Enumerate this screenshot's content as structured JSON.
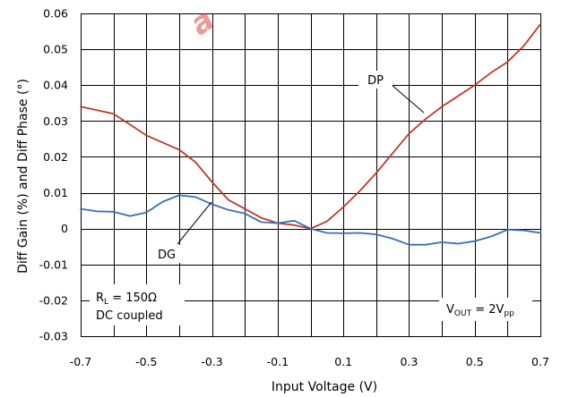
{
  "chart_data": {
    "type": "line",
    "xlabel": "Input Voltage (V)",
    "ylabel": "Diff Gain (%) and Diff Phase (°)",
    "xlim": [
      -0.7,
      0.7
    ],
    "ylim": [
      -0.03,
      0.06
    ],
    "x_ticks": [
      "-0.7",
      "-0.5",
      "-0.3",
      "-0.1",
      "0.1",
      "0.3",
      "0.5",
      "0.7"
    ],
    "x_tick_values": [
      -0.7,
      -0.5,
      -0.3,
      -0.1,
      0.1,
      0.3,
      0.5,
      0.7
    ],
    "y_ticks": [
      "0.06",
      "0.05",
      "0.04",
      "0.03",
      "0.02",
      "0.01",
      "0",
      "-0.01",
      "-0.02",
      "-0.03"
    ],
    "y_tick_values": [
      0.06,
      0.05,
      0.04,
      0.03,
      0.02,
      0.01,
      0,
      -0.01,
      -0.02,
      -0.03
    ],
    "x_grid_values": [
      -0.7,
      -0.6,
      -0.5,
      -0.4,
      -0.3,
      -0.2,
      -0.1,
      0,
      0.1,
      0.2,
      0.3,
      0.4,
      0.5,
      0.6,
      0.7
    ],
    "grid": true,
    "series": [
      {
        "name": "DP",
        "color": "#c0392b",
        "x": [
          -0.7,
          -0.65,
          -0.6,
          -0.55,
          -0.5,
          -0.45,
          -0.4,
          -0.35,
          -0.3,
          -0.25,
          -0.2,
          -0.15,
          -0.1,
          -0.05,
          0,
          0.05,
          0.1,
          0.15,
          0.2,
          0.25,
          0.3,
          0.35,
          0.4,
          0.45,
          0.5,
          0.55,
          0.6,
          0.65,
          0.7
        ],
        "y": [
          0.034,
          0.033,
          0.032,
          0.029,
          0.026,
          0.024,
          0.022,
          0.0185,
          0.013,
          0.008,
          0.0055,
          0.003,
          0.0015,
          0.001,
          0.0,
          0.002,
          0.006,
          0.0105,
          0.0155,
          0.021,
          0.0265,
          0.0305,
          0.034,
          0.037,
          0.04,
          0.0435,
          0.0465,
          0.051,
          0.057
        ]
      },
      {
        "name": "DG",
        "color": "#3a6fb5",
        "x": [
          -0.7,
          -0.65,
          -0.6,
          -0.55,
          -0.5,
          -0.45,
          -0.4,
          -0.35,
          -0.3,
          -0.25,
          -0.2,
          -0.15,
          -0.1,
          -0.05,
          0,
          0.05,
          0.1,
          0.15,
          0.2,
          0.25,
          0.3,
          0.35,
          0.4,
          0.45,
          0.5,
          0.55,
          0.6,
          0.65,
          0.7
        ],
        "y": [
          0.0055,
          0.0048,
          0.0047,
          0.0035,
          0.0045,
          0.0075,
          0.0093,
          0.0088,
          0.0068,
          0.0052,
          0.0042,
          0.0018,
          0.0015,
          0.0022,
          0.0,
          -0.0012,
          -0.0013,
          -0.0012,
          -0.0016,
          -0.0028,
          -0.0045,
          -0.0045,
          -0.0038,
          -0.0042,
          -0.0035,
          -0.0022,
          -0.0003,
          -0.0005,
          -0.0012
        ]
      }
    ],
    "annotations": [
      {
        "id": "dp",
        "text": "DP"
      },
      {
        "id": "dg",
        "text": "DG"
      },
      {
        "id": "rl",
        "r_main": "R",
        "r_sub": "L",
        "r_value": " = 150Ω",
        "line2": "DC coupled"
      },
      {
        "id": "vout",
        "v_main": "V",
        "v_sub": "OUT",
        "v_mid": " = 2V",
        "v_sub2": "pp"
      }
    ]
  },
  "watermark": {
    "text": "a",
    "color": "#e0433f"
  }
}
